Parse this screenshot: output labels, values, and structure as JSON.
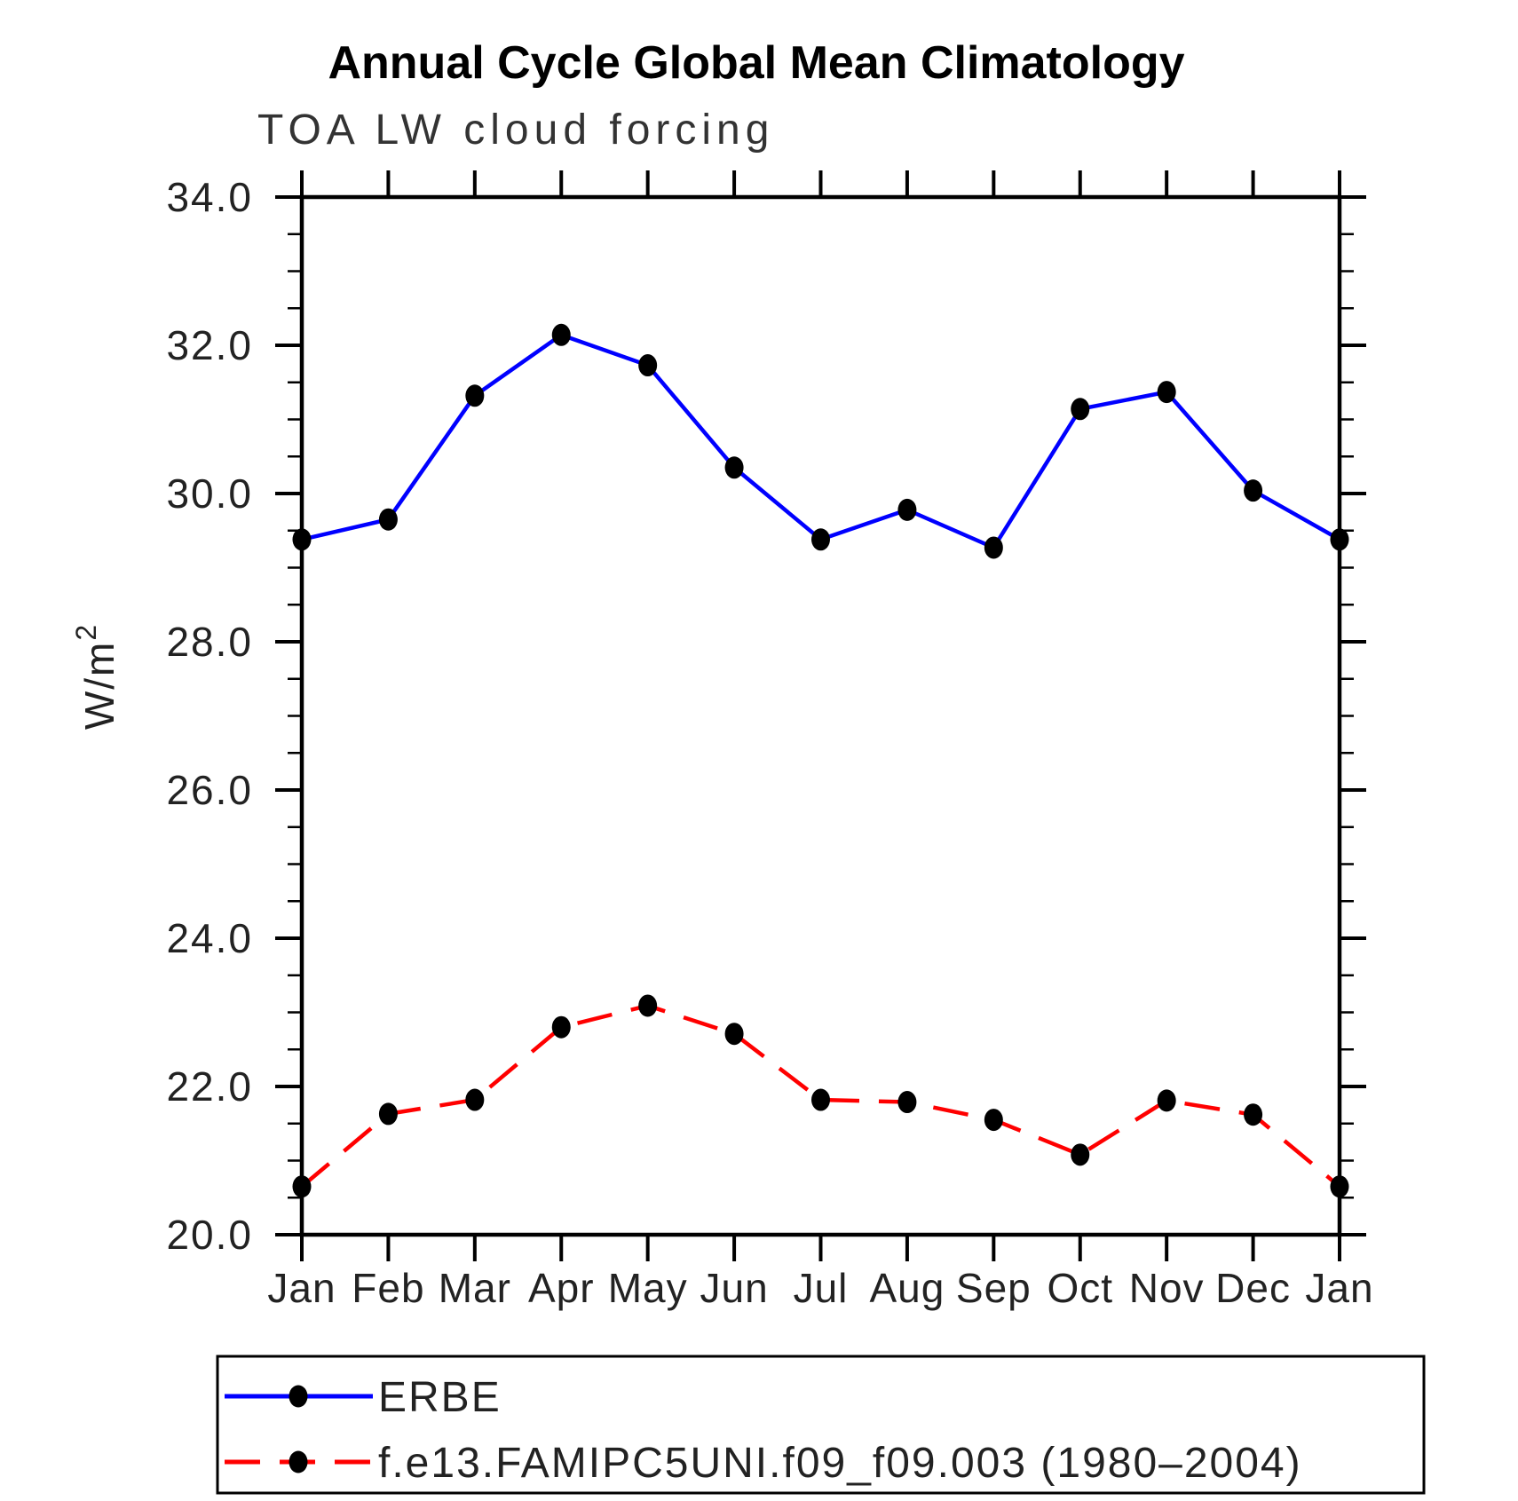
{
  "page": {
    "background": "#ffffff"
  },
  "chart_data": {
    "type": "line",
    "title": "Annual Cycle Global Mean Climatology",
    "subtitle": "TOA LW cloud forcing",
    "ylabel_base": "W/m",
    "ylabel_exponent": "2",
    "categories": [
      "Jan",
      "Feb",
      "Mar",
      "Apr",
      "May",
      "Jun",
      "Jul",
      "Aug",
      "Sep",
      "Oct",
      "Nov",
      "Dec",
      "Jan"
    ],
    "series": [
      {
        "name": "ERBE",
        "color": "#0000ff",
        "line_style": "solid",
        "marker": "filled-circle",
        "marker_color": "#000000",
        "values": [
          29.38,
          29.65,
          31.32,
          32.14,
          31.73,
          30.35,
          29.38,
          29.78,
          29.27,
          31.14,
          31.37,
          30.04,
          29.38
        ]
      },
      {
        "name": "f.e13.FAMIPC5UNI.f09_f09.003 (1980–2004)",
        "color": "#ff0000",
        "line_style": "dashed",
        "marker": "filled-circle",
        "marker_color": "#000000",
        "values": [
          20.65,
          21.63,
          21.82,
          22.8,
          23.09,
          22.71,
          21.82,
          21.79,
          21.55,
          21.08,
          21.81,
          21.62,
          20.65
        ]
      }
    ],
    "ylim": [
      20.0,
      34.0
    ],
    "ytick_major": 2.0,
    "ytick_minor": 0.5,
    "ytick_labels": [
      "20.0",
      "22.0",
      "24.0",
      "26.0",
      "28.0",
      "30.0",
      "32.0",
      "34.0"
    ],
    "grid": false,
    "legend_position": "bottom",
    "axis_color": "#000000"
  }
}
